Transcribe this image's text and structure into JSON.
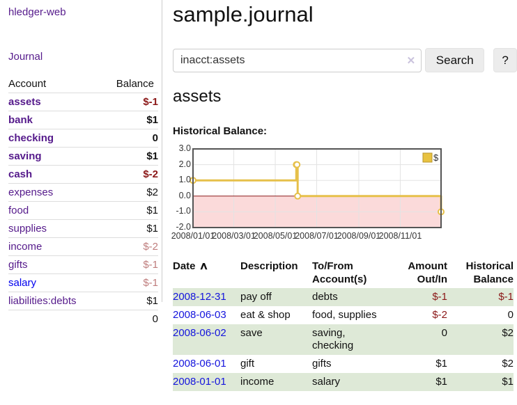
{
  "app": {
    "title": "hledger-web",
    "nav_journal": "Journal"
  },
  "sidebar": {
    "header": {
      "account": "Account",
      "balance": "Balance"
    },
    "accounts": [
      {
        "name": "assets",
        "balance": "$-1"
      },
      {
        "name": "bank",
        "balance": "$1"
      },
      {
        "name": "checking",
        "balance": "0"
      },
      {
        "name": "saving",
        "balance": "$1"
      },
      {
        "name": "cash",
        "balance": "$-2"
      },
      {
        "name": "expenses",
        "balance": "$2"
      },
      {
        "name": "food",
        "balance": "$1"
      },
      {
        "name": "supplies",
        "balance": "$1"
      },
      {
        "name": "income",
        "balance": "$-2"
      },
      {
        "name": "gifts",
        "balance": "$-1"
      },
      {
        "name": "salary",
        "balance": "$-1"
      },
      {
        "name": "liabilities:debts",
        "balance": "$1"
      }
    ],
    "total": "0"
  },
  "header": {
    "title": "sample.journal"
  },
  "search": {
    "value": "inacct:assets",
    "clear_icon": "✕",
    "button_label": "Search",
    "help_label": "?"
  },
  "account_page": {
    "heading": "assets",
    "chart_label": "Historical Balance:"
  },
  "chart_data": {
    "type": "line",
    "title": "Historical Balance:",
    "line_style": "step",
    "series": [
      {
        "name": "$",
        "points": [
          [
            "2008-01-01",
            1
          ],
          [
            "2008-06-01",
            2
          ],
          [
            "2008-06-02",
            2
          ],
          [
            "2008-06-03",
            0
          ],
          [
            "2008-12-31",
            -1
          ]
        ]
      }
    ],
    "x_range": [
      "2008-01-01",
      "2008-12-31"
    ],
    "ylim": [
      -2,
      3
    ],
    "y_ticks": [
      "3.0",
      "2.0",
      "1.0",
      "0.0",
      "-1.0",
      "-2.0"
    ],
    "x_ticks": [
      "2008/01/01",
      "2008/03/01",
      "2008/05/01",
      "2008/07/01",
      "2008/09/01",
      "2008/11/01"
    ],
    "grid": true,
    "legend_position": "top-right",
    "colors": {
      "line": "#E6C04A",
      "marker_fill": "#ffffff",
      "negative_fill": "#FBDADA",
      "zero_line": "#8B1A1A",
      "border": "#545454",
      "grid": "#e3e3e3",
      "legend_fill": "#E8C240",
      "legend_border": "#b8952e"
    }
  },
  "register": {
    "columns": [
      "Date",
      "Description",
      "To/From Account(s)",
      "Amount Out/In",
      "Historical Balance"
    ],
    "sort_icon": "∧",
    "rows": [
      {
        "date": "2008-12-31",
        "description": "pay off",
        "accounts": "debts",
        "amount": "$-1",
        "balance": "$-1"
      },
      {
        "date": "2008-06-03",
        "description": "eat & shop",
        "accounts": "food, supplies",
        "amount": "$-2",
        "balance": "0"
      },
      {
        "date": "2008-06-02",
        "description": "save",
        "accounts": "saving, checking",
        "amount": "0",
        "balance": "$2"
      },
      {
        "date": "2008-06-01",
        "description": "gift",
        "accounts": "gifts",
        "amount": "$1",
        "balance": "$2"
      },
      {
        "date": "2008-01-01",
        "description": "income",
        "accounts": "salary",
        "amount": "$1",
        "balance": "$1"
      }
    ]
  }
}
